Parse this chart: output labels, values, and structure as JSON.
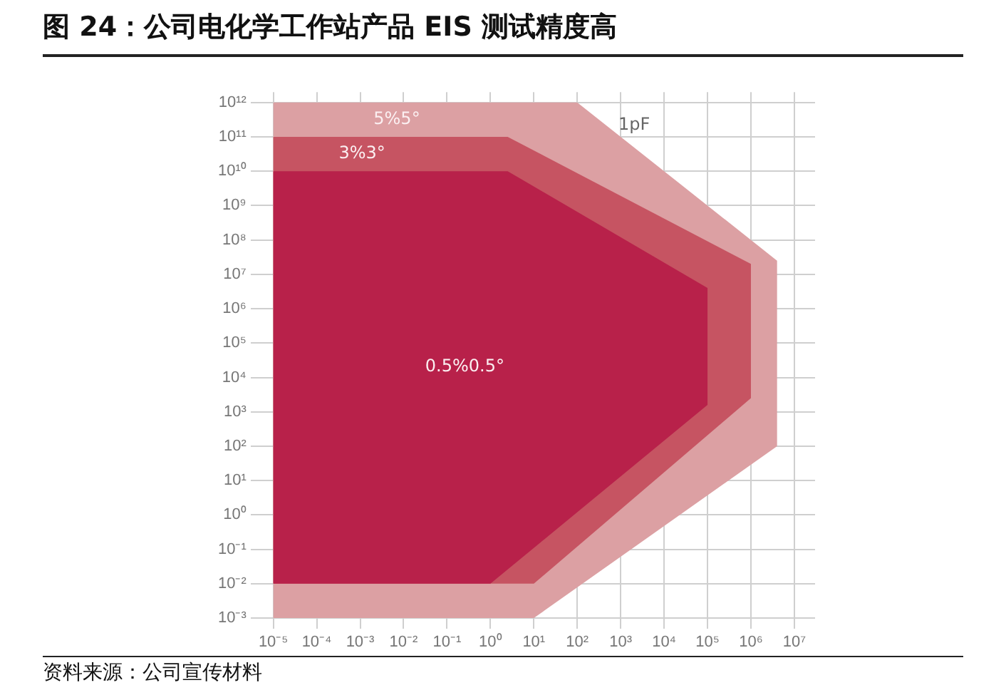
{
  "chart_data": {
    "type": "area",
    "title": "图 24：公司电化学工作站产品 EIS 测试精度高",
    "log": "xy",
    "grid": true,
    "legend": false,
    "xlim": [
      3e-06,
      30000000.0
    ],
    "ylim": [
      0.0005,
      2000000000000.0
    ],
    "xticks": [
      {
        "value": 1e-05,
        "label": "10⁻⁵"
      },
      {
        "value": 0.0001,
        "label": "10⁻⁴"
      },
      {
        "value": 0.001,
        "label": "10⁻³"
      },
      {
        "value": 0.01,
        "label": "10⁻²"
      },
      {
        "value": 0.1,
        "label": "10⁻¹"
      },
      {
        "value": 1,
        "label": "10⁰"
      },
      {
        "value": 10,
        "label": "10¹"
      },
      {
        "value": 100,
        "label": "10²"
      },
      {
        "value": 1000,
        "label": "10³"
      },
      {
        "value": 10000.0,
        "label": "10⁴"
      },
      {
        "value": 100000.0,
        "label": "10⁵"
      },
      {
        "value": 1000000.0,
        "label": "10⁶"
      },
      {
        "value": 10000000.0,
        "label": "10⁷"
      }
    ],
    "yticks": [
      {
        "value": 0.001,
        "label": "10⁻³"
      },
      {
        "value": 0.01,
        "label": "10⁻²"
      },
      {
        "value": 0.1,
        "label": "10⁻¹"
      },
      {
        "value": 1,
        "label": "10⁰"
      },
      {
        "value": 10,
        "label": "10¹"
      },
      {
        "value": 100,
        "label": "10²"
      },
      {
        "value": 1000,
        "label": "10³"
      },
      {
        "value": 10000.0,
        "label": "10⁴"
      },
      {
        "value": 100000.0,
        "label": "10⁵"
      },
      {
        "value": 1000000.0,
        "label": "10⁶"
      },
      {
        "value": 10000000.0,
        "label": "10⁷"
      },
      {
        "value": 100000000.0,
        "label": "10⁸"
      },
      {
        "value": 1000000000.0,
        "label": "10⁹"
      },
      {
        "value": 10000000000.0,
        "label": "10¹⁰"
      },
      {
        "value": 100000000000.0,
        "label": "10¹¹"
      },
      {
        "value": 1000000000000.0,
        "label": "10¹²"
      }
    ],
    "series": [
      {
        "name": "5%5°",
        "color": "#dca0a3",
        "x": [
          1e-05,
          100,
          4000000.0,
          4000000.0,
          10,
          1e-05
        ],
        "values": [
          1000000000000.0,
          1000000000000.0,
          25000000.0,
          100,
          0.001,
          0.001
        ]
      },
      {
        "name": "3%3°",
        "color": "#c65462",
        "x": [
          1e-05,
          2.5,
          1000000.0,
          1000000.0,
          10,
          1e-05
        ],
        "values": [
          100000000000.0,
          100000000000.0,
          20000000.0,
          2500.0,
          0.01,
          0.01
        ]
      },
      {
        "name": "0.5%0.5°",
        "color": "#b8214a",
        "x": [
          1e-05,
          2.5,
          100000.0,
          100000.0,
          1,
          1e-05
        ],
        "values": [
          10000000000.0,
          10000000000.0,
          4000000.0,
          1600.0,
          0.01,
          0.01
        ]
      }
    ],
    "annotations": [
      "1pF",
      "资料来源：公司宣传材料"
    ]
  }
}
